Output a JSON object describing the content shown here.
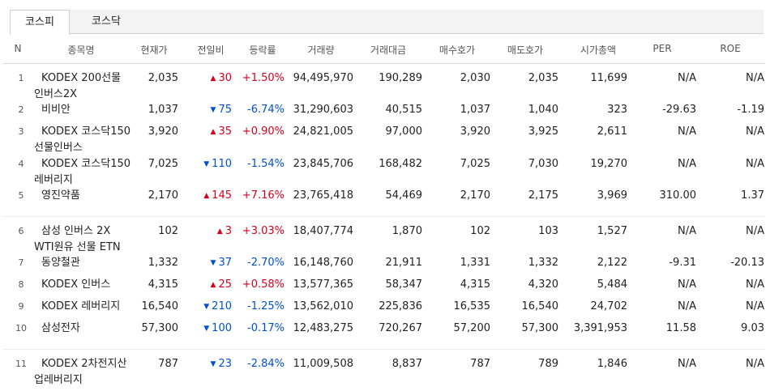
{
  "tabs": [
    {
      "label": "코스피",
      "active": true
    },
    {
      "label": "코스닥",
      "active": false
    }
  ],
  "headers": [
    "N",
    "종목명",
    "현재가",
    "전일비",
    "등락률",
    "거래량",
    "거래대금",
    "매수호가",
    "매도호가",
    "시가총액",
    "PER",
    "ROE"
  ],
  "colors": {
    "up": "#d6001c",
    "down": "#0050d0"
  },
  "rows": [
    {
      "n": "1",
      "name": [
        "KODEX 200선물",
        "인버스2X"
      ],
      "price": "2,035",
      "dir": "up",
      "change": "30",
      "rate": "+1.50%",
      "volume": "94,495,970",
      "amount": "190,289",
      "bid": "2,030",
      "ask": "2,035",
      "cap": "11,699",
      "per": "N/A",
      "roe": "N/A"
    },
    {
      "n": "2",
      "name": [
        "비비안"
      ],
      "price": "1,037",
      "dir": "down",
      "change": "75",
      "rate": "-6.74%",
      "volume": "31,290,603",
      "amount": "40,515",
      "bid": "1,037",
      "ask": "1,040",
      "cap": "323",
      "per": "-29.63",
      "roe": "-1.19"
    },
    {
      "n": "3",
      "name": [
        "KODEX 코스닥150",
        "선물인버스"
      ],
      "price": "3,920",
      "dir": "up",
      "change": "35",
      "rate": "+0.90%",
      "volume": "24,821,005",
      "amount": "97,000",
      "bid": "3,920",
      "ask": "3,925",
      "cap": "2,611",
      "per": "N/A",
      "roe": "N/A"
    },
    {
      "n": "4",
      "name": [
        "KODEX 코스닥150",
        "레버리지"
      ],
      "price": "7,025",
      "dir": "down",
      "change": "110",
      "rate": "-1.54%",
      "volume": "23,845,706",
      "amount": "168,482",
      "bid": "7,025",
      "ask": "7,030",
      "cap": "19,270",
      "per": "N/A",
      "roe": "N/A"
    },
    {
      "n": "5",
      "name": [
        "영진약품"
      ],
      "price": "2,170",
      "dir": "up",
      "change": "145",
      "rate": "+7.16%",
      "volume": "23,765,418",
      "amount": "54,469",
      "bid": "2,170",
      "ask": "2,175",
      "cap": "3,969",
      "per": "310.00",
      "roe": "1.37"
    },
    {
      "n": "6",
      "name": [
        "삼성 인버스 2X",
        "WTI원유 선물 ETN"
      ],
      "price": "102",
      "dir": "up",
      "change": "3",
      "rate": "+3.03%",
      "volume": "18,407,774",
      "amount": "1,870",
      "bid": "102",
      "ask": "103",
      "cap": "1,527",
      "per": "N/A",
      "roe": "N/A"
    },
    {
      "n": "7",
      "name": [
        "동양철관"
      ],
      "price": "1,332",
      "dir": "down",
      "change": "37",
      "rate": "-2.70%",
      "volume": "16,148,760",
      "amount": "21,911",
      "bid": "1,331",
      "ask": "1,332",
      "cap": "2,122",
      "per": "-9.31",
      "roe": "-20.13"
    },
    {
      "n": "8",
      "name": [
        "KODEX 인버스"
      ],
      "price": "4,315",
      "dir": "up",
      "change": "25",
      "rate": "+0.58%",
      "volume": "13,577,365",
      "amount": "58,347",
      "bid": "4,315",
      "ask": "4,320",
      "cap": "5,484",
      "per": "N/A",
      "roe": "N/A"
    },
    {
      "n": "9",
      "name": [
        "KODEX 레버리지"
      ],
      "price": "16,540",
      "dir": "down",
      "change": "210",
      "rate": "-1.25%",
      "volume": "13,562,010",
      "amount": "225,836",
      "bid": "16,535",
      "ask": "16,540",
      "cap": "24,702",
      "per": "N/A",
      "roe": "N/A"
    },
    {
      "n": "10",
      "name": [
        "삼성전자"
      ],
      "price": "57,300",
      "dir": "down",
      "change": "100",
      "rate": "-0.17%",
      "volume": "12,483,275",
      "amount": "720,267",
      "bid": "57,200",
      "ask": "57,300",
      "cap": "3,391,953",
      "per": "11.58",
      "roe": "9.03"
    },
    {
      "n": "11",
      "name": [
        "KODEX 2차전지산",
        "업레버리지"
      ],
      "price": "787",
      "dir": "down",
      "change": "23",
      "rate": "-2.84%",
      "volume": "11,009,508",
      "amount": "8,837",
      "bid": "787",
      "ask": "789",
      "cap": "1,846",
      "per": "N/A",
      "roe": "N/A"
    }
  ]
}
